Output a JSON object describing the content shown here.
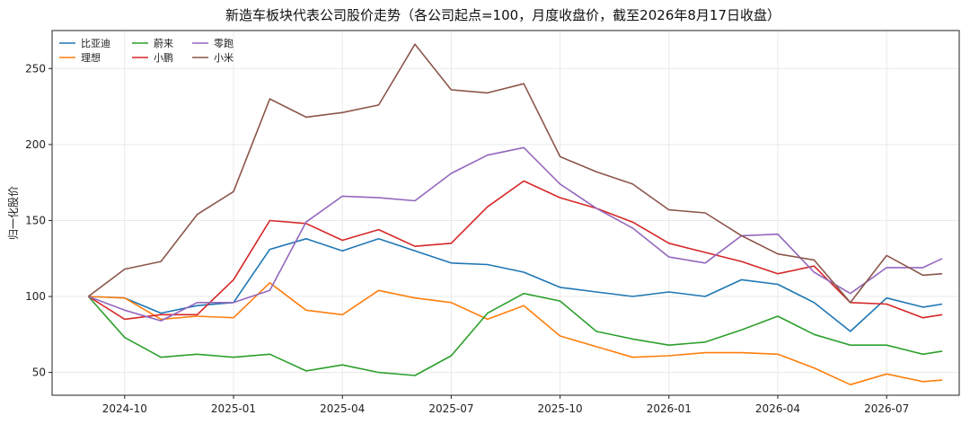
{
  "chart_data": {
    "type": "line",
    "title": "新造车板块代表公司股价走势（各公司起点=100，月度收盘价，截至2026年8月17日收盘）",
    "xlabel": "",
    "ylabel": "归一化股价",
    "x_start": "2024-09",
    "x": [
      "2024-09",
      "2024-10",
      "2024-11",
      "2024-12",
      "2025-01",
      "2025-02",
      "2025-03",
      "2025-04",
      "2025-05",
      "2025-06",
      "2025-07",
      "2025-08",
      "2025-09",
      "2025-10",
      "2025-11",
      "2025-12",
      "2026-01",
      "2026-02",
      "2026-03",
      "2026-04",
      "2026-05",
      "2026-06",
      "2026-07",
      "2026-08",
      "2026-08-17"
    ],
    "x_ticks": [
      "2024-10",
      "2025-01",
      "2025-04",
      "2025-07",
      "2025-10",
      "2026-01",
      "2026-04",
      "2026-07"
    ],
    "xlim": [
      "2024-08",
      "2026-09"
    ],
    "ylim": [
      35,
      275
    ],
    "y_ticks": [
      50,
      100,
      150,
      200,
      250
    ],
    "grid": true,
    "legend_position": "top-left",
    "series": [
      {
        "name": "比亚迪",
        "color": "#1f77b4",
        "values": [
          100,
          99,
          89,
          94,
          96,
          131,
          138,
          130,
          138,
          130,
          122,
          121,
          116,
          106,
          103,
          100,
          103,
          100,
          111,
          108,
          96,
          77,
          99,
          93,
          95
        ]
      },
      {
        "name": "理想",
        "color": "#ff7f0e",
        "values": [
          100,
          99,
          85,
          87,
          86,
          109,
          91,
          88,
          104,
          99,
          96,
          85,
          94,
          74,
          67,
          60,
          61,
          63,
          63,
          62,
          53,
          42,
          49,
          44,
          45
        ]
      },
      {
        "name": "蔚来",
        "color": "#2ca02c",
        "values": [
          100,
          73,
          60,
          62,
          60,
          62,
          51,
          55,
          50,
          48,
          61,
          89,
          102,
          97,
          77,
          72,
          68,
          70,
          78,
          87,
          75,
          68,
          68,
          62,
          64
        ]
      },
      {
        "name": "小鹏",
        "color": "#d62728",
        "values": [
          100,
          85,
          88,
          88,
          111,
          150,
          148,
          137,
          144,
          133,
          135,
          159,
          176,
          165,
          158,
          149,
          135,
          129,
          123,
          115,
          120,
          96,
          95,
          86,
          88
        ]
      },
      {
        "name": "零跑",
        "color": "#9467bd",
        "values": [
          100,
          91,
          84,
          96,
          96,
          104,
          149,
          166,
          165,
          163,
          181,
          193,
          198,
          174,
          158,
          145,
          126,
          122,
          140,
          141,
          116,
          102,
          119,
          119,
          125
        ]
      },
      {
        "name": "小米",
        "color": "#8c564b",
        "values": [
          100,
          118,
          123,
          154,
          169,
          230,
          218,
          221,
          226,
          266,
          236,
          234,
          240,
          192,
          182,
          174,
          157,
          155,
          140,
          128,
          124,
          96,
          127,
          114,
          115
        ]
      }
    ]
  }
}
